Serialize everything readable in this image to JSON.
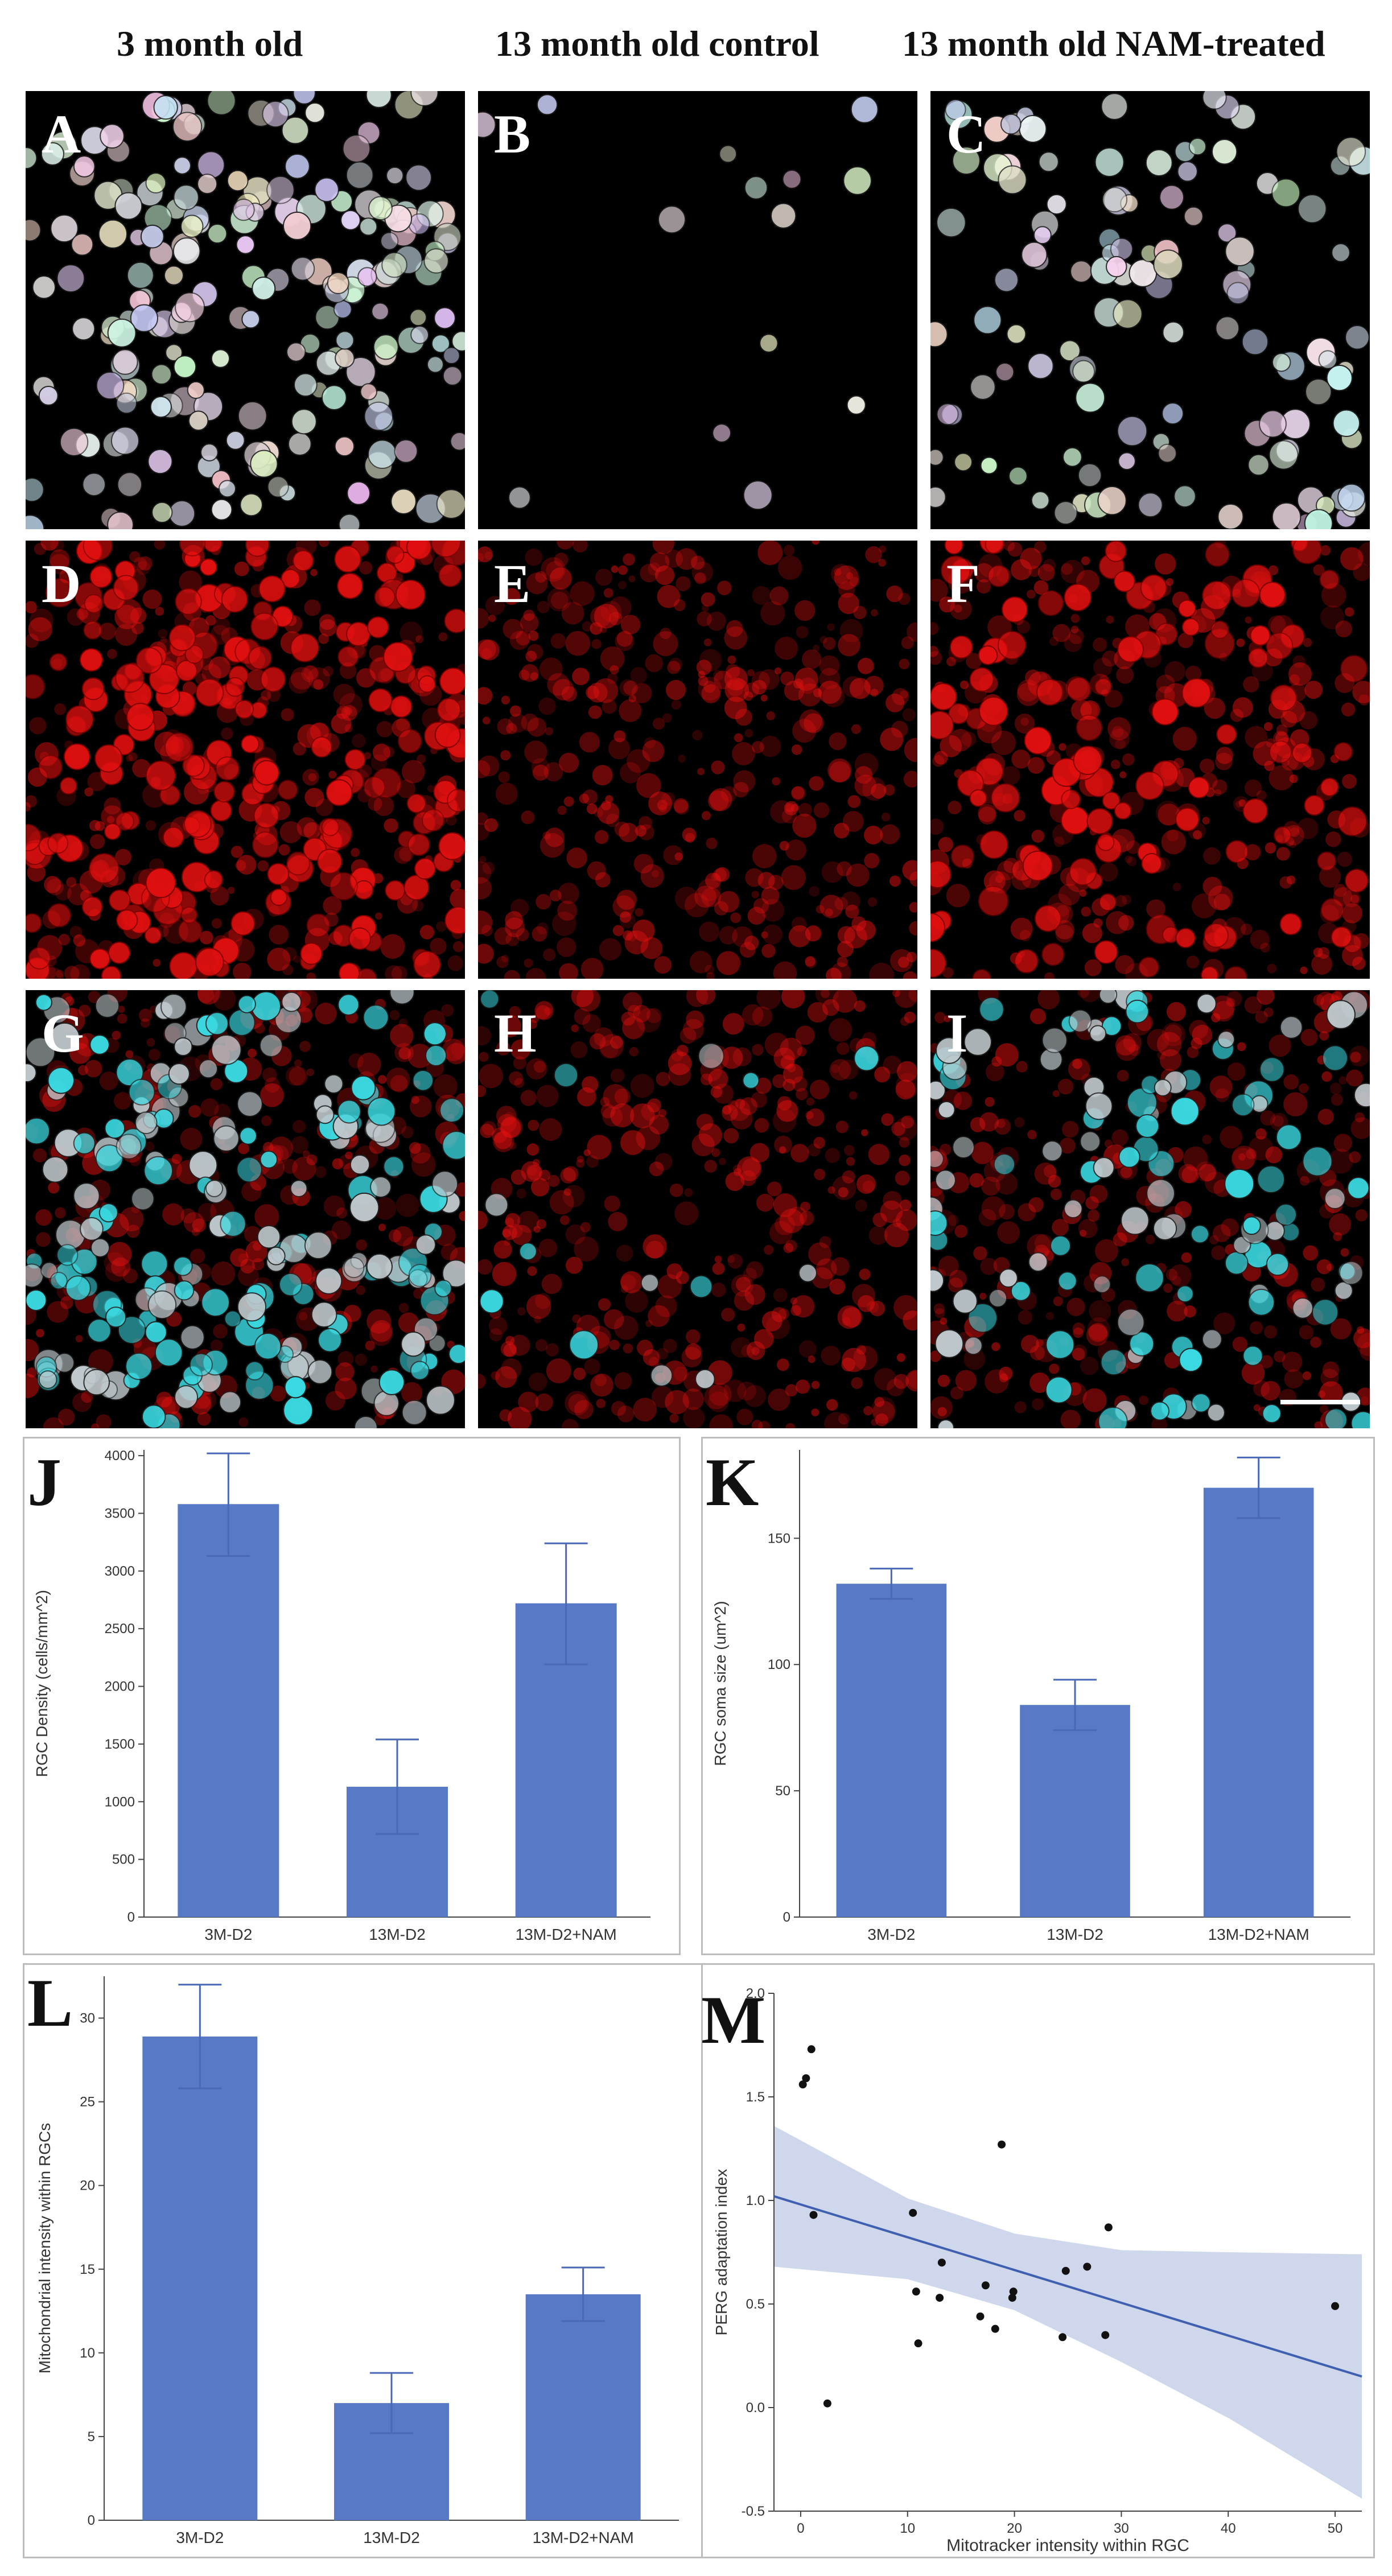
{
  "columns": {
    "col1": "3 month old",
    "col2": "13 month old control",
    "col3": "13 month old NAM-treated"
  },
  "panels": {
    "A": {
      "letter": "A",
      "stain": "white",
      "density": "high"
    },
    "B": {
      "letter": "B",
      "stain": "white",
      "density": "sparse"
    },
    "C": {
      "letter": "C",
      "stain": "white",
      "density": "medium"
    },
    "D": {
      "letter": "D",
      "stain": "red",
      "density": "high"
    },
    "E": {
      "letter": "E",
      "stain": "red",
      "density": "diffuse"
    },
    "F": {
      "letter": "F",
      "stain": "red",
      "density": "medium"
    },
    "G": {
      "letter": "G",
      "stain": "merge",
      "density": "high"
    },
    "H": {
      "letter": "H",
      "stain": "merge",
      "density": "sparse"
    },
    "I": {
      "letter": "I",
      "stain": "merge",
      "density": "medium"
    }
  },
  "colors": {
    "bar": "#5779c6",
    "error": "#4a68b8",
    "red_stain": "#e01010",
    "cyan": "#3ad8e0",
    "band": "#c6d0e8",
    "fit_line": "#3f5fb0"
  },
  "chart_data": [
    {
      "id": "J",
      "type": "bar",
      "letter": "J",
      "categories": [
        "3M-D2",
        "13M-D2",
        "13M-D2+NAM"
      ],
      "values": [
        3580,
        1130,
        2720
      ],
      "error_upper": [
        4020,
        1540,
        3240
      ],
      "error_lower": [
        3130,
        720,
        2190
      ],
      "ylabel": "RGC Density (cells/mm^2)",
      "ylim": [
        0,
        4050
      ],
      "yticks": [
        0,
        500,
        1000,
        1500,
        2000,
        2500,
        3000,
        3500,
        4000
      ],
      "ytick_labels": [
        "0",
        "500",
        "1000",
        "1500",
        "2000",
        "2500",
        "3000",
        "3500",
        "4000"
      ]
    },
    {
      "id": "K",
      "type": "bar",
      "letter": "K",
      "categories": [
        "3M-D2",
        "13M-D2",
        "13M-D2+NAM"
      ],
      "values": [
        132,
        84,
        170
      ],
      "error_upper": [
        138,
        94,
        182
      ],
      "error_lower": [
        126,
        74,
        158
      ],
      "ylabel": "RGC soma size (um^2)",
      "ylim": [
        0,
        185
      ],
      "yticks": [
        0,
        50,
        100,
        150
      ],
      "ytick_labels": [
        "0",
        "50",
        "100",
        "150"
      ]
    },
    {
      "id": "L",
      "type": "bar",
      "letter": "L",
      "categories": [
        "3M-D2",
        "13M-D2",
        "13M-D2+NAM"
      ],
      "values": [
        28.9,
        7.0,
        13.5
      ],
      "error_upper": [
        32.0,
        8.8,
        15.1
      ],
      "error_lower": [
        25.8,
        5.2,
        11.9
      ],
      "ylabel": "Mitochondrial intensity within RGCs",
      "ylim": [
        0,
        32.5
      ],
      "yticks": [
        0,
        5,
        10,
        15,
        20,
        25,
        30
      ],
      "ytick_labels": [
        "0",
        "5",
        "10",
        "15",
        "20",
        "25",
        "30"
      ]
    },
    {
      "id": "M",
      "type": "scatter",
      "letter": "M",
      "xlabel": "Mitotracker intensity within RGC",
      "ylabel": "PERG adaptation index",
      "xlim": [
        -2.5,
        52.5
      ],
      "ylim": [
        -0.5,
        2.0
      ],
      "xticks": [
        0,
        10,
        20,
        30,
        40,
        50
      ],
      "xtick_labels": [
        "0",
        "10",
        "20",
        "30",
        "40",
        "50"
      ],
      "yticks": [
        -0.5,
        0.0,
        0.5,
        1.0,
        1.5,
        2.0
      ],
      "ytick_labels": [
        "-0.5",
        "0.0",
        "0.5",
        "1.0",
        "1.5",
        "2.0"
      ],
      "points": [
        [
          0.2,
          1.56
        ],
        [
          0.5,
          1.59
        ],
        [
          1.0,
          1.73
        ],
        [
          1.2,
          0.93
        ],
        [
          2.5,
          0.02
        ],
        [
          10.5,
          0.94
        ],
        [
          10.8,
          0.56
        ],
        [
          11.0,
          0.31
        ],
        [
          13.0,
          0.53
        ],
        [
          13.2,
          0.7
        ],
        [
          16.8,
          0.44
        ],
        [
          17.3,
          0.59
        ],
        [
          18.2,
          0.38
        ],
        [
          18.8,
          1.27
        ],
        [
          19.8,
          0.53
        ],
        [
          19.9,
          0.56
        ],
        [
          24.5,
          0.34
        ],
        [
          24.8,
          0.66
        ],
        [
          26.8,
          0.68
        ],
        [
          28.5,
          0.35
        ],
        [
          28.8,
          0.87
        ],
        [
          50.0,
          0.49
        ]
      ],
      "fit_line": [
        [
          -2.5,
          1.02
        ],
        [
          52.5,
          0.15
        ]
      ],
      "confidence_band": {
        "x": [
          -2.5,
          10,
          20,
          30,
          40,
          52.5
        ],
        "upper": [
          1.36,
          1.01,
          0.84,
          0.76,
          0.75,
          0.74
        ],
        "lower": [
          0.68,
          0.62,
          0.47,
          0.22,
          -0.05,
          -0.44
        ]
      }
    }
  ]
}
